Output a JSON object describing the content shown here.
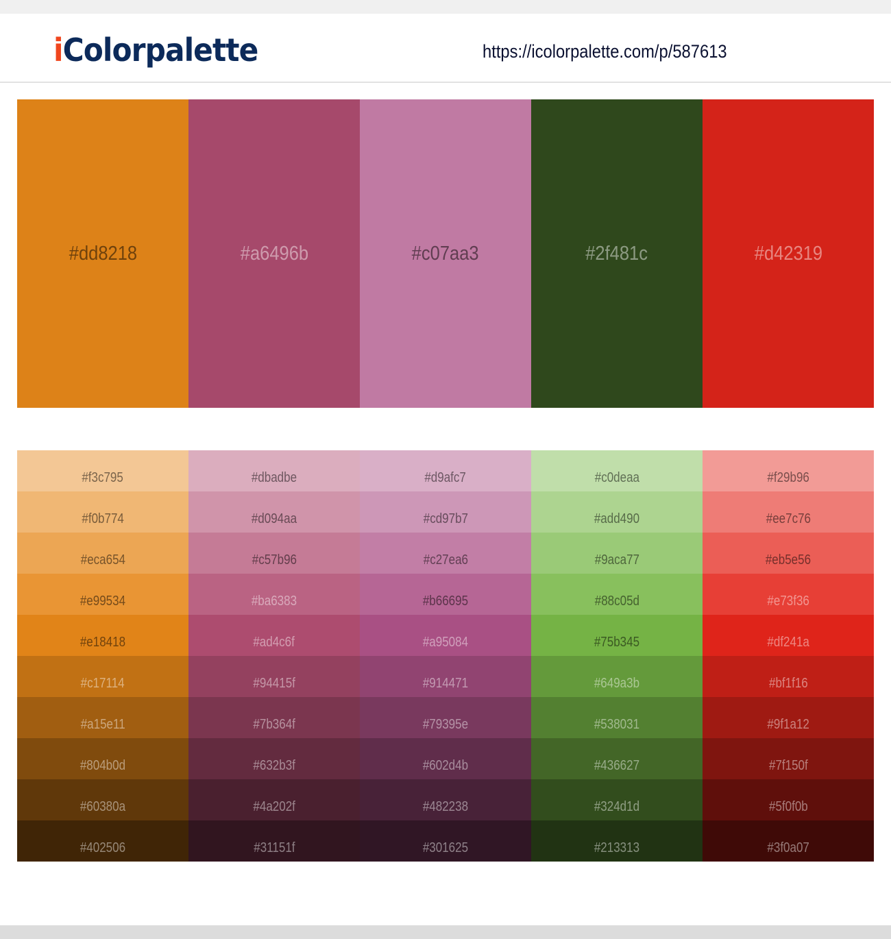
{
  "header": {
    "logo_i": "i",
    "logo_rest": "Colorpalette",
    "url": "https://icolorpalette.com/p/587613",
    "logo_colors": {
      "i": "#f0461e",
      "text": "#0c2a5a"
    }
  },
  "main_colors": [
    {
      "hex": "#dd8218",
      "label": "#dd8218",
      "text": "dark"
    },
    {
      "hex": "#a6496b",
      "label": "#a6496b",
      "text": "light"
    },
    {
      "hex": "#c07aa3",
      "label": "#c07aa3",
      "text": "dark"
    },
    {
      "hex": "#2f481c",
      "label": "#2f481c",
      "text": "light"
    },
    {
      "hex": "#d42319",
      "label": "#d42319",
      "text": "light"
    }
  ],
  "shades": [
    [
      {
        "hex": "#f3c795",
        "text": "dark"
      },
      {
        "hex": "#f0b774",
        "text": "dark"
      },
      {
        "hex": "#eca654",
        "text": "dark"
      },
      {
        "hex": "#e99534",
        "text": "dark"
      },
      {
        "hex": "#e18418",
        "text": "dark"
      },
      {
        "hex": "#c17114",
        "text": "light"
      },
      {
        "hex": "#a15e11",
        "text": "light"
      },
      {
        "hex": "#804b0d",
        "text": "light"
      },
      {
        "hex": "#60380a",
        "text": "light"
      },
      {
        "hex": "#402506",
        "text": "light"
      }
    ],
    [
      {
        "hex": "#dbadbe",
        "text": "dark"
      },
      {
        "hex": "#d094aa",
        "text": "dark"
      },
      {
        "hex": "#c57b96",
        "text": "dark"
      },
      {
        "hex": "#ba6383",
        "text": "light"
      },
      {
        "hex": "#ad4c6f",
        "text": "light"
      },
      {
        "hex": "#94415f",
        "text": "light"
      },
      {
        "hex": "#7b364f",
        "text": "light"
      },
      {
        "hex": "#632b3f",
        "text": "light"
      },
      {
        "hex": "#4a202f",
        "text": "light"
      },
      {
        "hex": "#31151f",
        "text": "light"
      }
    ],
    [
      {
        "hex": "#d9afc7",
        "text": "dark"
      },
      {
        "hex": "#cd97b7",
        "text": "dark"
      },
      {
        "hex": "#c27ea6",
        "text": "dark"
      },
      {
        "hex": "#b66695",
        "text": "dark"
      },
      {
        "hex": "#a95084",
        "text": "light"
      },
      {
        "hex": "#914471",
        "text": "light"
      },
      {
        "hex": "#79395e",
        "text": "light"
      },
      {
        "hex": "#602d4b",
        "text": "light"
      },
      {
        "hex": "#482238",
        "text": "light"
      },
      {
        "hex": "#301625",
        "text": "light"
      }
    ],
    [
      {
        "hex": "#c0deaa",
        "text": "dark"
      },
      {
        "hex": "#add490",
        "text": "dark"
      },
      {
        "hex": "#9aca77",
        "text": "dark"
      },
      {
        "hex": "#88c05d",
        "text": "dark"
      },
      {
        "hex": "#75b345",
        "text": "dark"
      },
      {
        "hex": "#649a3b",
        "text": "light"
      },
      {
        "hex": "#538031",
        "text": "light"
      },
      {
        "hex": "#436627",
        "text": "light"
      },
      {
        "hex": "#324d1d",
        "text": "light"
      },
      {
        "hex": "#213313",
        "text": "light"
      }
    ],
    [
      {
        "hex": "#f29b96",
        "text": "dark"
      },
      {
        "hex": "#ee7c76",
        "text": "dark"
      },
      {
        "hex": "#eb5e56",
        "text": "dark"
      },
      {
        "hex": "#e73f36",
        "text": "light"
      },
      {
        "hex": "#df241a",
        "text": "light"
      },
      {
        "hex": "#bf1f16",
        "text": "light"
      },
      {
        "hex": "#9f1a12",
        "text": "light"
      },
      {
        "hex": "#7f150f",
        "text": "light"
      },
      {
        "hex": "#5f0f0b",
        "text": "light"
      },
      {
        "hex": "#3f0a07",
        "text": "light"
      }
    ]
  ]
}
